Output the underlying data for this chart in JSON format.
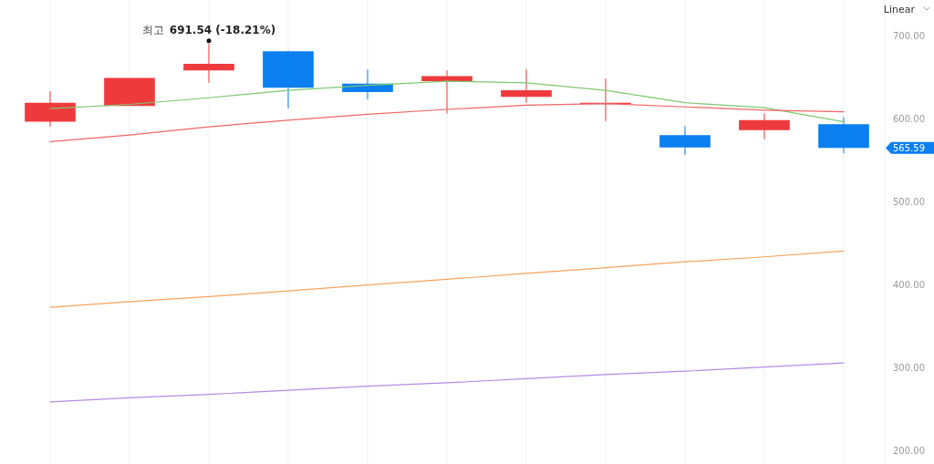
{
  "chart_data": {
    "type": "candlestick",
    "categories": [
      null,
      null,
      null,
      null,
      null,
      null,
      null,
      null,
      null,
      null,
      null
    ],
    "ohlc": [
      [
        597,
        634,
        591,
        620
      ],
      [
        616,
        650,
        616,
        650
      ],
      [
        659,
        691.54,
        644,
        667
      ],
      [
        682,
        683,
        613,
        638
      ],
      [
        643,
        660,
        624,
        633
      ],
      [
        646,
        659,
        607,
        652
      ],
      [
        627,
        660,
        620,
        635
      ],
      [
        619,
        649,
        598,
        620
      ],
      [
        581,
        592,
        557,
        566
      ],
      [
        587,
        607,
        576,
        599
      ],
      [
        594,
        603,
        559,
        565.59
      ]
    ],
    "colors": [
      "#ef3a3d",
      "#ef3a3d",
      "#ef3a3d",
      "#0b7ff0",
      "#0b7ff0",
      "#ef3a3d",
      "#ef3a3d",
      "#ef3a3d",
      "#0b7ff0",
      "#ef3a3d",
      "#0b7ff0"
    ],
    "series": [
      {
        "type": "line",
        "color": "#7cc96e",
        "values": [
          613,
          618,
          626,
          635,
          641,
          646,
          644,
          635,
          620,
          614,
          597
        ]
      },
      {
        "type": "line",
        "color": "#f06565",
        "values": [
          573,
          581,
          591,
          599,
          606,
          612,
          617,
          619,
          615,
          611,
          609
        ]
      },
      {
        "type": "line",
        "color": "#f7a35c",
        "values": [
          373,
          380,
          386,
          393,
          400,
          407,
          414,
          421,
          428,
          434,
          441
        ]
      },
      {
        "type": "line",
        "color": "#b68ae6",
        "values": [
          259,
          264,
          268,
          273,
          278,
          282,
          287,
          292,
          296,
          301,
          306
        ]
      }
    ],
    "ylim": [
      184,
      744
    ],
    "yticks": [
      {
        "value": 200,
        "label": "200.00"
      },
      {
        "value": 300,
        "label": "300.00"
      },
      {
        "value": 400,
        "label": "400.00"
      },
      {
        "value": 500,
        "label": "500.00"
      },
      {
        "value": 600,
        "label": "600.00"
      },
      {
        "value": 700,
        "label": "700.00"
      }
    ],
    "grid": "x",
    "tick_labels": "y",
    "annotations": [
      {
        "text": "최고 691.54 (-18.21%)",
        "y": 691.54
      },
      "565.59",
      "Linear"
    ]
  }
}
